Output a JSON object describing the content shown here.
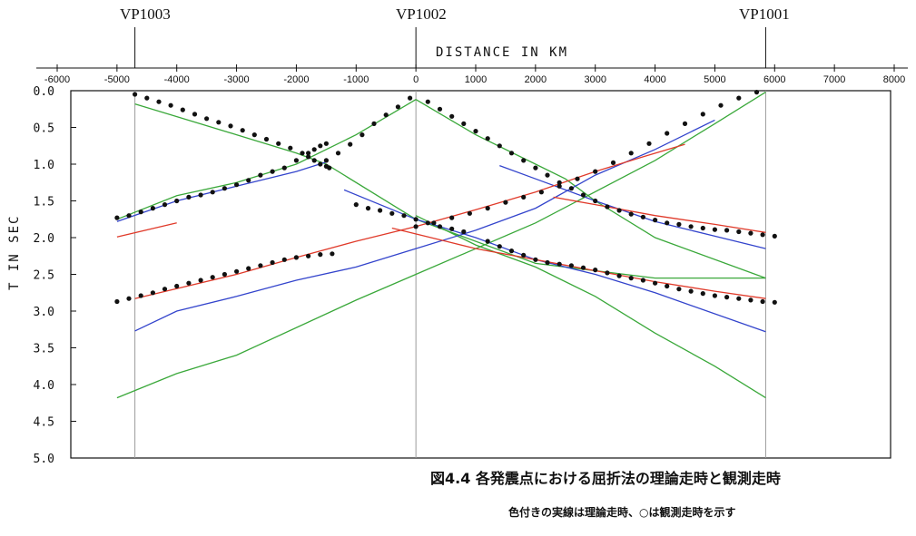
{
  "labels": {
    "vp1003": "VP1003",
    "vp1002": "VP1002",
    "vp1001": "VP1001",
    "xlabel": "DISTANCE IN KM",
    "ylabel": "T IN SEC",
    "caption": "図4.4 各発震点における屈折法の理論走時と観測走時",
    "note": "色付きの実線は理論走時、○は観測走時を示す"
  },
  "chart_data": {
    "type": "line",
    "title": "",
    "xlabel": "DISTANCE IN KM",
    "ylabel": "T IN SEC",
    "xlim": [
      -6000,
      8000
    ],
    "ylim": [
      0,
      5
    ],
    "y_inverted": true,
    "x_ticks": [
      -6000,
      -5000,
      -4000,
      -3000,
      -2000,
      -1000,
      0,
      1000,
      2000,
      3000,
      4000,
      5000,
      6000,
      7000,
      8000
    ],
    "y_ticks": [
      0.0,
      0.5,
      1.0,
      1.5,
      2.0,
      2.5,
      3.0,
      3.5,
      4.0,
      4.5,
      5.0
    ],
    "shot_points": [
      {
        "label": "VP1003",
        "x": -4700
      },
      {
        "label": "VP1002",
        "x": 0
      },
      {
        "label": "VP1001",
        "x": 5850
      }
    ],
    "colors": {
      "green": "#3aa83a",
      "blue": "#3344cc",
      "red": "#e03a2a",
      "observed": "#111111"
    },
    "theoretical_lines": [
      {
        "color": "green",
        "x": [
          -4700,
          -3000,
          -2000,
          -1500
        ],
        "y": [
          0.18,
          0.6,
          0.85,
          1.0
        ]
      },
      {
        "color": "green",
        "x": [
          -1500,
          0,
          2000,
          4000,
          5850
        ],
        "y": [
          1.0,
          1.75,
          2.35,
          2.55,
          2.55
        ]
      },
      {
        "color": "green",
        "x": [
          -5000,
          -4000,
          -3000,
          -2000,
          -1000,
          0
        ],
        "y": [
          1.75,
          1.43,
          1.25,
          1.0,
          0.6,
          0.12
        ]
      },
      {
        "color": "green",
        "x": [
          0,
          1000,
          2000,
          2500,
          3000,
          4000,
          5850
        ],
        "y": [
          0.12,
          0.6,
          1.0,
          1.2,
          1.5,
          2.0,
          2.55
        ]
      },
      {
        "color": "green",
        "x": [
          -5000,
          -4000,
          -3000,
          -1000,
          0,
          2000,
          4000,
          5000,
          5850
        ],
        "y": [
          4.18,
          3.85,
          3.6,
          2.85,
          2.5,
          1.8,
          0.95,
          0.45,
          0.02
        ]
      },
      {
        "color": "green",
        "x": [
          0,
          1000,
          2000,
          3000,
          4000,
          5000,
          5850
        ],
        "y": [
          1.7,
          2.1,
          2.4,
          2.8,
          3.3,
          3.75,
          4.18
        ]
      },
      {
        "color": "blue",
        "x": [
          -5000,
          -4000,
          -3000,
          -2000,
          -1500
        ],
        "y": [
          1.78,
          1.5,
          1.3,
          1.1,
          0.97
        ]
      },
      {
        "color": "blue",
        "x": [
          -1200,
          0,
          1000,
          2000,
          3000,
          4000,
          5850
        ],
        "y": [
          1.35,
          1.75,
          2.0,
          2.3,
          2.5,
          2.75,
          3.28
        ]
      },
      {
        "color": "blue",
        "x": [
          -4700,
          -4000,
          -3000,
          -2000,
          -1000,
          0,
          1000,
          2000,
          3000,
          4000,
          5000
        ],
        "y": [
          3.27,
          3.0,
          2.8,
          2.58,
          2.4,
          2.15,
          1.9,
          1.6,
          1.15,
          0.8,
          0.4
        ]
      },
      {
        "color": "blue",
        "x": [
          1400,
          2000,
          3000,
          4000,
          5000,
          5850
        ],
        "y": [
          1.02,
          1.2,
          1.5,
          1.78,
          1.98,
          2.15
        ]
      },
      {
        "color": "red",
        "x": [
          -5000,
          -4000
        ],
        "y": [
          1.99,
          1.8
        ]
      },
      {
        "color": "red",
        "x": [
          -4700,
          -3000,
          -2000,
          -1000,
          0,
          1000,
          2000,
          3000,
          3800,
          4500
        ],
        "y": [
          2.83,
          2.5,
          2.27,
          2.05,
          1.85,
          1.62,
          1.38,
          1.1,
          0.9,
          0.73
        ]
      },
      {
        "color": "red",
        "x": [
          -400,
          500,
          1000,
          2000,
          3000,
          4000,
          5000,
          5850
        ],
        "y": [
          1.87,
          2.05,
          2.15,
          2.3,
          2.45,
          2.6,
          2.73,
          2.83
        ]
      },
      {
        "color": "red",
        "x": [
          2300,
          3000,
          4000,
          5000,
          5850
        ],
        "y": [
          1.45,
          1.55,
          1.7,
          1.82,
          1.93
        ]
      }
    ],
    "observed": [
      {
        "x": [
          -4700,
          -4500,
          -4300,
          -4100,
          -3900,
          -3700,
          -3500,
          -3300,
          -3100,
          -2900,
          -2700,
          -2500,
          -2300,
          -2100,
          -1900,
          -1800,
          -1700,
          -1600,
          -1500,
          -1450
        ],
        "y": [
          0.05,
          0.1,
          0.15,
          0.2,
          0.26,
          0.32,
          0.38,
          0.43,
          0.48,
          0.54,
          0.6,
          0.66,
          0.72,
          0.78,
          0.85,
          0.9,
          0.95,
          1.0,
          1.03,
          1.05
        ]
      },
      {
        "x": [
          -5000,
          -4800,
          -4600,
          -4400,
          -4200,
          -4000,
          -3800,
          -3600,
          -3400,
          -3200,
          -3000,
          -2800,
          -2600,
          -2400,
          -2200,
          -2000,
          -1800,
          -1700,
          -1600,
          -1500
        ],
        "y": [
          1.73,
          1.7,
          1.65,
          1.6,
          1.55,
          1.5,
          1.45,
          1.42,
          1.38,
          1.33,
          1.28,
          1.22,
          1.15,
          1.1,
          1.05,
          0.95,
          0.85,
          0.8,
          0.75,
          0.72
        ]
      },
      {
        "x": [
          -1500,
          -1300,
          -1100,
          -900,
          -700,
          -500,
          -300,
          -100
        ],
        "y": [
          0.95,
          0.85,
          0.73,
          0.6,
          0.45,
          0.33,
          0.22,
          0.1
        ]
      },
      {
        "x": [
          -1000,
          -800,
          -600,
          -400,
          -200,
          0,
          200,
          400,
          600,
          800
        ],
        "y": [
          1.55,
          1.6,
          1.63,
          1.67,
          1.7,
          1.75,
          1.8,
          1.85,
          1.88,
          1.92
        ]
      },
      {
        "x": [
          200,
          400,
          600,
          800,
          1000,
          1200,
          1400,
          1600,
          1800,
          2000,
          2200,
          2400,
          2600,
          2800,
          3000,
          3200,
          3400,
          3600,
          3800,
          4000,
          4200,
          4400,
          4600,
          4800,
          5000,
          5200,
          5400,
          5600,
          5800,
          6000
        ],
        "y": [
          0.15,
          0.25,
          0.35,
          0.45,
          0.55,
          0.65,
          0.75,
          0.85,
          0.95,
          1.05,
          1.15,
          1.25,
          1.33,
          1.42,
          1.5,
          1.58,
          1.63,
          1.68,
          1.72,
          1.76,
          1.8,
          1.82,
          1.85,
          1.87,
          1.89,
          1.9,
          1.92,
          1.94,
          1.96,
          1.98
        ]
      },
      {
        "x": [
          -5000,
          -4800,
          -4600,
          -4400,
          -4200,
          -4000,
          -3800,
          -3600,
          -3400,
          -3200,
          -3000,
          -2800,
          -2600,
          -2400,
          -2200,
          -2000,
          -1800,
          -1600,
          -1400
        ],
        "y": [
          2.87,
          2.83,
          2.79,
          2.75,
          2.7,
          2.66,
          2.62,
          2.58,
          2.54,
          2.5,
          2.46,
          2.42,
          2.38,
          2.34,
          2.3,
          2.27,
          2.25,
          2.23,
          2.22
        ]
      },
      {
        "x": [
          0,
          300,
          600,
          900,
          1200,
          1500,
          1800,
          2100,
          2400,
          2700,
          3000,
          3300,
          3600,
          3900,
          4200,
          4500,
          4800,
          5100,
          5400,
          5700
        ],
        "y": [
          1.85,
          1.8,
          1.73,
          1.67,
          1.6,
          1.52,
          1.45,
          1.38,
          1.3,
          1.2,
          1.1,
          0.98,
          0.85,
          0.72,
          0.58,
          0.45,
          0.32,
          0.2,
          0.1,
          0.02
        ]
      },
      {
        "x": [
          1200,
          1400,
          1600,
          1800,
          2000,
          2200,
          2400,
          2600,
          2800,
          3000,
          3200,
          3400,
          3600,
          3800,
          4000,
          4200,
          4400,
          4600,
          4800,
          5000,
          5200,
          5400,
          5600,
          5800,
          6000
        ],
        "y": [
          2.05,
          2.12,
          2.18,
          2.24,
          2.3,
          2.34,
          2.36,
          2.38,
          2.41,
          2.44,
          2.48,
          2.52,
          2.55,
          2.58,
          2.62,
          2.66,
          2.7,
          2.73,
          2.76,
          2.79,
          2.81,
          2.83,
          2.85,
          2.87,
          2.88
        ]
      }
    ]
  }
}
